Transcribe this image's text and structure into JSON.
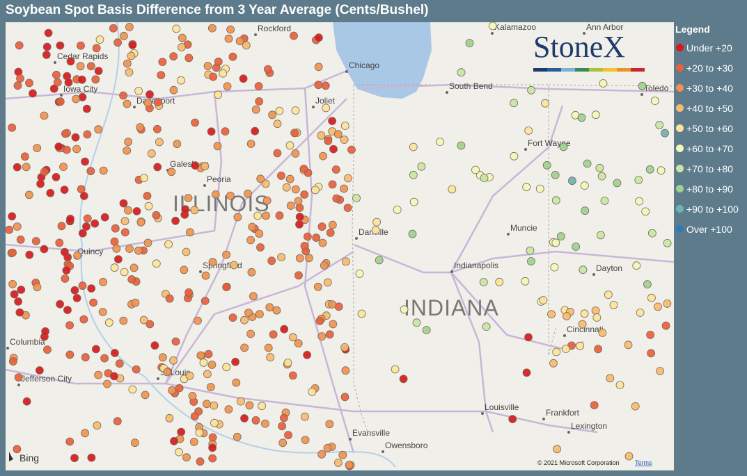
{
  "header": {
    "title": "Soybean Spot Basis Difference from 3 Year Average (Cents/Bushel)"
  },
  "legend": {
    "title": "Legend",
    "items": [
      {
        "label": "Under +20",
        "color": "#d7191c"
      },
      {
        "label": "+20 to +30",
        "color": "#e8603c"
      },
      {
        "label": "+30 to +40",
        "color": "#f0924f"
      },
      {
        "label": "+40 to +50",
        "color": "#f7bb6e"
      },
      {
        "label": "+50 to +60",
        "color": "#fbe49a"
      },
      {
        "label": "+60 to +70",
        "color": "#f4f7b8"
      },
      {
        "label": "+70 to +80",
        "color": "#c9e6a4"
      },
      {
        "label": "+80 to +90",
        "color": "#9fd18f"
      },
      {
        "label": "+90 to +100",
        "color": "#6fb2b2"
      },
      {
        "label": "Over +100",
        "color": "#2c7bb6"
      }
    ]
  },
  "map": {
    "logo": "StoneX",
    "attribution": "© 2021 Microsoft Corporation",
    "terms": "Terms",
    "provider": "Bing",
    "states": [
      "ILLINOIS",
      "INDIANA"
    ],
    "cities": [
      "Rockford",
      "Kalamazoo",
      "Ann Arbor",
      "Cedar Rapids",
      "Chicago",
      "Iowa City",
      "Davenport",
      "Joliet",
      "South Bend",
      "Toledo",
      "Fort Wayne",
      "Galesburg",
      "Peoria",
      "Danville",
      "Muncie",
      "Quincy",
      "Springfield",
      "Indianapolis",
      "Dayton",
      "Cincinnati",
      "Columbia",
      "St Louis",
      "Jefferson City",
      "Louisville",
      "Frankfort",
      "Lexington",
      "Evansville",
      "Owensboro"
    ]
  }
}
